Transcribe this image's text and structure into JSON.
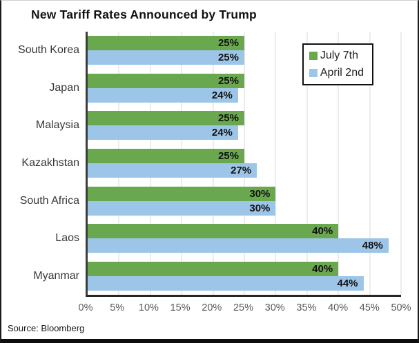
{
  "title": "New Tariff Rates Announced by Trump",
  "source": "Source: Bloomberg",
  "colors": {
    "july7": "#6aa84f",
    "april2": "#9dc5e8",
    "gridline": "#d9d9d9",
    "axis": "#262626",
    "tick_text": "#595959",
    "value_text": "#111111"
  },
  "chart_data": {
    "type": "bar",
    "orientation": "horizontal",
    "title": "New Tariff Rates Announced by Trump",
    "categories": [
      "South Korea",
      "Japan",
      "Malaysia",
      "Kazakhstan",
      "South Africa",
      "Laos",
      "Myanmar"
    ],
    "series": [
      {
        "name": "July 7th",
        "color": "#6aa84f",
        "values": [
          25,
          25,
          25,
          25,
          30,
          40,
          40
        ]
      },
      {
        "name": "April 2nd",
        "color": "#9dc5e8",
        "values": [
          25,
          24,
          24,
          27,
          30,
          48,
          44
        ]
      }
    ],
    "xlabel": "",
    "ylabel": "",
    "xlim": [
      0,
      50
    ],
    "xticks": [
      "0%",
      "5%",
      "10%",
      "15%",
      "20%",
      "25%",
      "30%",
      "35%",
      "40%",
      "45%",
      "50%"
    ],
    "grid": true,
    "legend_position": "top-right",
    "value_label_format": "{value}%"
  }
}
